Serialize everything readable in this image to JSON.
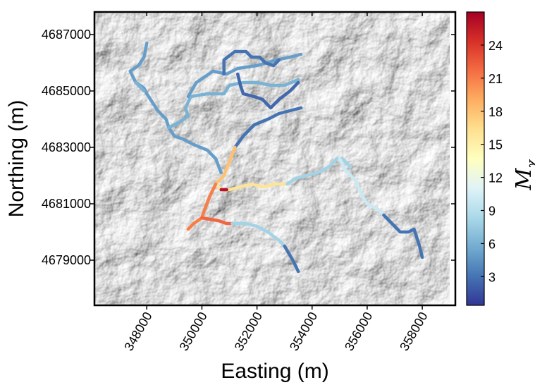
{
  "chart_data": {
    "type": "map",
    "xlabel": "Easting (m)",
    "ylabel": "Northing (m)",
    "xlim": [
      346100,
      359200
    ],
    "ylim": [
      4677400,
      4687800
    ],
    "xticks": [
      "348000",
      "350000",
      "352000",
      "354000",
      "356000",
      "358000"
    ],
    "yticks": [
      "4679000",
      "4681000",
      "4683000",
      "4685000",
      "4687000"
    ],
    "colorbar": {
      "label": "M_χ",
      "label_display": "M",
      "label_sub": "χ",
      "range": [
        0.4,
        27
      ],
      "ticks": [
        "3",
        "6",
        "9",
        "12",
        "15",
        "18",
        "21",
        "24"
      ],
      "colormap": "RdYlBu_r",
      "stops": [
        "#313695",
        "#4575b4",
        "#74add1",
        "#abd9e9",
        "#e0f3f8",
        "#ffffbf",
        "#fee090",
        "#fdae61",
        "#f46d43",
        "#d73027",
        "#a50026"
      ]
    },
    "background": "hillshade",
    "channels": [
      {
        "mchi": 5,
        "points": [
          [
            348000,
            4686700
          ],
          [
            347900,
            4686200
          ],
          [
            347700,
            4685900
          ],
          [
            347400,
            4685700
          ],
          [
            347600,
            4685300
          ],
          [
            347900,
            4685100
          ],
          [
            348000,
            4684900
          ],
          [
            348200,
            4684600
          ],
          [
            348400,
            4684300
          ],
          [
            348700,
            4684000
          ],
          [
            348800,
            4683700
          ],
          [
            349000,
            4683400
          ],
          [
            349300,
            4683300
          ],
          [
            349700,
            4683100
          ],
          [
            350200,
            4682900
          ],
          [
            350500,
            4682600
          ],
          [
            350700,
            4682100
          ]
        ]
      },
      {
        "mchi": 6,
        "points": [
          [
            347600,
            4685300
          ],
          [
            347900,
            4685000
          ]
        ]
      },
      {
        "mchi": 6,
        "points": [
          [
            348800,
            4683700
          ],
          [
            349200,
            4683900
          ],
          [
            349500,
            4684100
          ],
          [
            349400,
            4684400
          ],
          [
            349600,
            4684800
          ],
          [
            350200,
            4684900
          ],
          [
            350800,
            4684900
          ],
          [
            351000,
            4685200
          ],
          [
            351500,
            4685300
          ],
          [
            352000,
            4685300
          ],
          [
            352500,
            4685200
          ],
          [
            353000,
            4685200
          ],
          [
            353500,
            4685400
          ]
        ]
      },
      {
        "mchi": 5,
        "points": [
          [
            349500,
            4684800
          ],
          [
            349800,
            4685300
          ],
          [
            350400,
            4685700
          ],
          [
            350900,
            4685600
          ],
          [
            351300,
            4685800
          ],
          [
            352000,
            4685900
          ],
          [
            352700,
            4686100
          ],
          [
            353200,
            4686200
          ],
          [
            353600,
            4686300
          ]
        ]
      },
      {
        "mchi": 3,
        "points": [
          [
            350800,
            4685600
          ],
          [
            350800,
            4686100
          ],
          [
            351200,
            4686400
          ],
          [
            351600,
            4686400
          ],
          [
            351800,
            4686200
          ],
          [
            352100,
            4686200
          ],
          [
            352300,
            4686000
          ],
          [
            352600,
            4685900
          ],
          [
            352800,
            4686100
          ]
        ]
      },
      {
        "mchi": 2.5,
        "points": [
          [
            351300,
            4685600
          ],
          [
            351400,
            4685200
          ],
          [
            351500,
            4684900
          ],
          [
            351900,
            4684800
          ],
          [
            352200,
            4684700
          ],
          [
            352500,
            4684400
          ],
          [
            352800,
            4684700
          ],
          [
            353200,
            4685000
          ],
          [
            353500,
            4685300
          ]
        ]
      },
      {
        "mchi": 3,
        "points": [
          [
            351200,
            4683000
          ],
          [
            351500,
            4683400
          ],
          [
            351900,
            4683800
          ],
          [
            352400,
            4684000
          ],
          [
            352800,
            4684200
          ],
          [
            353200,
            4684300
          ],
          [
            353600,
            4684400
          ]
        ]
      },
      {
        "mchi": 18,
        "points": [
          [
            350500,
            4681700
          ],
          [
            350800,
            4682000
          ],
          [
            351000,
            4682500
          ],
          [
            351200,
            4683000
          ]
        ]
      },
      {
        "mchi": 16,
        "points": [
          [
            350500,
            4681700
          ],
          [
            350700,
            4681500
          ],
          [
            351000,
            4681500
          ],
          [
            351400,
            4681600
          ],
          [
            351800,
            4681700
          ],
          [
            352200,
            4681600
          ],
          [
            352700,
            4681700
          ],
          [
            353100,
            4681700
          ]
        ]
      },
      {
        "mchi": 26,
        "points": [
          [
            350700,
            4681500
          ],
          [
            350900,
            4681500
          ]
        ]
      },
      {
        "mchi": 8,
        "points": [
          [
            353100,
            4681700
          ],
          [
            353400,
            4681900
          ],
          [
            353800,
            4682000
          ],
          [
            354200,
            4682100
          ],
          [
            354600,
            4682300
          ],
          [
            354900,
            4682600
          ],
          [
            355100,
            4682600
          ],
          [
            355300,
            4682400
          ],
          [
            355400,
            4682300
          ]
        ]
      },
      {
        "mchi": 10,
        "points": [
          [
            355000,
            4682600
          ],
          [
            355200,
            4682200
          ],
          [
            355600,
            4681800
          ],
          [
            355800,
            4681300
          ],
          [
            356000,
            4681000
          ],
          [
            356400,
            4680800
          ],
          [
            356600,
            4680600
          ]
        ]
      },
      {
        "mchi": 3,
        "points": [
          [
            356600,
            4680600
          ],
          [
            356900,
            4680300
          ],
          [
            357200,
            4680000
          ],
          [
            357500,
            4680000
          ],
          [
            357700,
            4680100
          ],
          [
            357800,
            4679800
          ],
          [
            357900,
            4679500
          ],
          [
            358000,
            4679100
          ]
        ]
      },
      {
        "mchi": 21,
        "points": [
          [
            350500,
            4681700
          ],
          [
            350300,
            4681300
          ],
          [
            350100,
            4680800
          ],
          [
            350000,
            4680500
          ],
          [
            349700,
            4680300
          ],
          [
            349500,
            4680100
          ]
        ]
      },
      {
        "mchi": 22,
        "points": [
          [
            350000,
            4680500
          ],
          [
            350600,
            4680400
          ],
          [
            350900,
            4680300
          ],
          [
            351100,
            4680300
          ]
        ]
      },
      {
        "mchi": 8,
        "points": [
          [
            351100,
            4680300
          ],
          [
            351600,
            4680300
          ],
          [
            352000,
            4680200
          ],
          [
            352400,
            4680000
          ],
          [
            352800,
            4679700
          ],
          [
            353000,
            4679500
          ]
        ]
      },
      {
        "mchi": 3,
        "points": [
          [
            353000,
            4679500
          ],
          [
            353300,
            4679000
          ],
          [
            353500,
            4678600
          ]
        ]
      }
    ]
  }
}
